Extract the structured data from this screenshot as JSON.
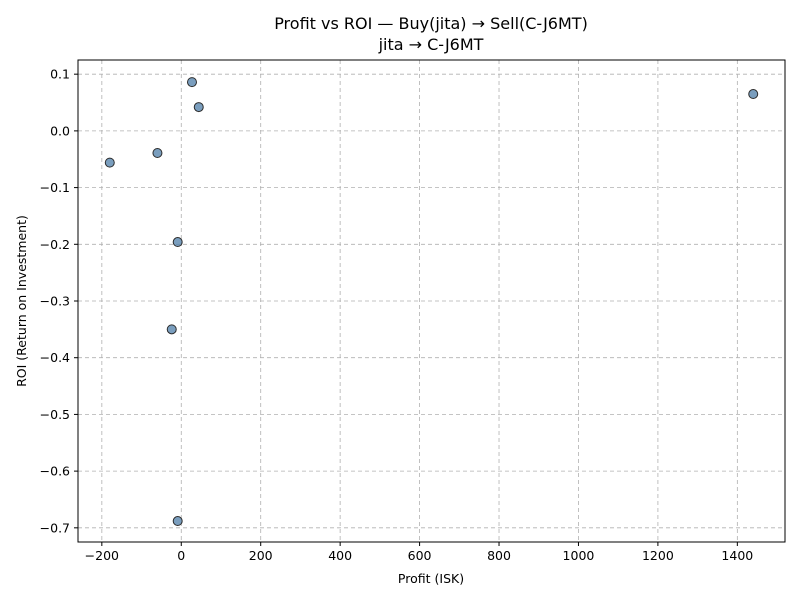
{
  "chart_data": {
    "type": "scatter",
    "title": "Profit vs ROI — Buy(jita) → Sell(C-J6MT)",
    "subtitle": "jita → C-J6MT",
    "xlabel": "Profit (ISK)",
    "ylabel": "ROI (Return on Investment)",
    "xlim": [
      -260,
      1520
    ],
    "ylim": [
      -0.725,
      0.125
    ],
    "xticks": [
      -200,
      0,
      200,
      400,
      600,
      800,
      1000,
      1200,
      1400
    ],
    "yticks": [
      0.1,
      0.0,
      -0.1,
      -0.2,
      -0.3,
      -0.4,
      -0.5,
      -0.6,
      -0.7
    ],
    "xtick_labels": [
      "−200",
      "0",
      "200",
      "400",
      "600",
      "800",
      "1000",
      "1200",
      "1400"
    ],
    "ytick_labels": [
      "0.1",
      "0.0",
      "−0.1",
      "−0.2",
      "−0.3",
      "−0.4",
      "−0.5",
      "−0.6",
      "−0.7"
    ],
    "grid": true,
    "marker_color": "#4e7ea8",
    "marker_edge_color": "#2b2b2b",
    "points": [
      {
        "x": 27,
        "y": 0.086
      },
      {
        "x": 44,
        "y": 0.042
      },
      {
        "x": 1440,
        "y": 0.065
      },
      {
        "x": -60,
        "y": -0.039
      },
      {
        "x": -180,
        "y": -0.056
      },
      {
        "x": -9,
        "y": -0.196
      },
      {
        "x": -24,
        "y": -0.35
      },
      {
        "x": -9,
        "y": -0.688
      }
    ]
  }
}
